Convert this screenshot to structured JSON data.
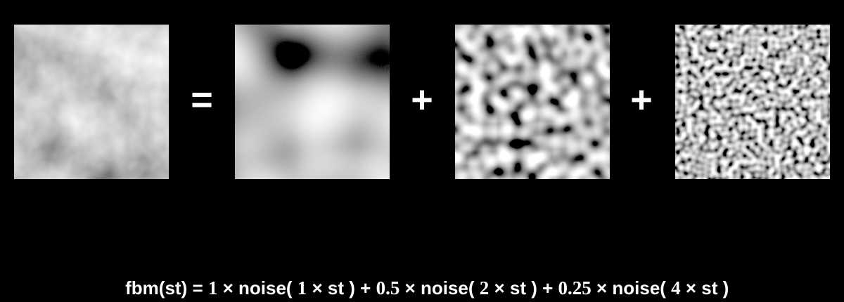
{
  "operators": {
    "equals": "=",
    "plus_1": "+",
    "plus_2": "+"
  },
  "formula": {
    "lhs": "fbm(st) = ",
    "amp1": "1",
    "op_mul_1": " × noise( ",
    "freq1": "1",
    "tail1": " × st ) + ",
    "amp2": "0.5",
    "op_mul_2": " × noise( ",
    "freq2": "2",
    "tail2": " × st ) + ",
    "amp3": "0.25",
    "op_mul_3": " × noise( ",
    "freq3": "4",
    "tail3": " × st )"
  },
  "panels": {
    "fbm": {
      "color_base": "#8a8a8a",
      "octaves": [
        1,
        2,
        4
      ],
      "amplitudes": [
        1,
        0.5,
        0.25
      ]
    },
    "octave_1": {
      "frequency": 1,
      "color_base": "#6f6f6f"
    },
    "octave_2": {
      "frequency": 2,
      "color_base": "#7a7a7a"
    },
    "octave_3": {
      "frequency": 4,
      "color_base": "#8c8c8c"
    }
  }
}
